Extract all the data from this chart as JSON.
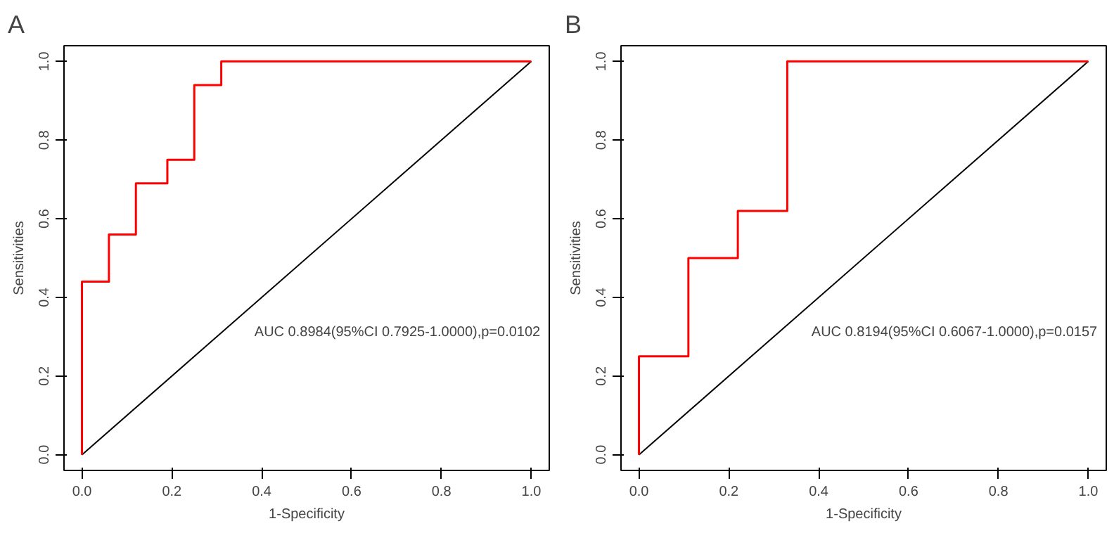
{
  "chart_data": [
    {
      "type": "line",
      "title": "A",
      "xlabel": "1-Specificity",
      "ylabel": "Sensitivities",
      "xlim": [
        -0.04,
        1.04
      ],
      "ylim": [
        -0.04,
        1.04
      ],
      "xticks": [
        {
          "value": 0,
          "label": "0.0"
        },
        {
          "value": 0.2,
          "label": "0.2"
        },
        {
          "value": 0.4,
          "label": "0.4"
        },
        {
          "value": 0.6,
          "label": "0.6"
        },
        {
          "value": 0.8,
          "label": "0.8"
        },
        {
          "value": 1,
          "label": "1.0"
        }
      ],
      "yticks": [
        {
          "value": 0,
          "label": "0.0"
        },
        {
          "value": 0.2,
          "label": "0.2"
        },
        {
          "value": 0.4,
          "label": "0.4"
        },
        {
          "value": 0.6,
          "label": "0.6"
        },
        {
          "value": 0.8,
          "label": "0.8"
        },
        {
          "value": 1,
          "label": "1.0"
        }
      ],
      "grid": false,
      "annotations": [
        "AUC 0.8984(95%CI 0.7925-1.0000),p=0.0102"
      ],
      "series": [
        {
          "color": "#000000",
          "x": [
            0,
            1
          ],
          "values": [
            0,
            1
          ]
        },
        {
          "color": "#ff0000",
          "x": [
            0,
            0,
            0.06,
            0.06,
            0.12,
            0.12,
            0.19,
            0.19,
            0.25,
            0.25,
            0.31,
            0.31,
            1
          ],
          "values": [
            0,
            0.44,
            0.44,
            0.56,
            0.56,
            0.69,
            0.69,
            0.75,
            0.75,
            0.94,
            0.94,
            1,
            1
          ]
        }
      ]
    },
    {
      "type": "line",
      "title": "B",
      "xlabel": "1-Specificity",
      "ylabel": "Sensitivities",
      "xlim": [
        -0.04,
        1.04
      ],
      "ylim": [
        -0.04,
        1.04
      ],
      "xticks": [
        {
          "value": 0,
          "label": "0.0"
        },
        {
          "value": 0.2,
          "label": "0.2"
        },
        {
          "value": 0.4,
          "label": "0.4"
        },
        {
          "value": 0.6,
          "label": "0.6"
        },
        {
          "value": 0.8,
          "label": "0.8"
        },
        {
          "value": 1,
          "label": "1.0"
        }
      ],
      "yticks": [
        {
          "value": 0,
          "label": "0.0"
        },
        {
          "value": 0.2,
          "label": "0.2"
        },
        {
          "value": 0.4,
          "label": "0.4"
        },
        {
          "value": 0.6,
          "label": "0.6"
        },
        {
          "value": 0.8,
          "label": "0.8"
        },
        {
          "value": 1,
          "label": "1.0"
        }
      ],
      "grid": false,
      "annotations": [
        "AUC 0.8194(95%CI 0.6067-1.0000),p=0.0157"
      ],
      "series": [
        {
          "color": "#000000",
          "x": [
            0,
            1
          ],
          "values": [
            0,
            1
          ]
        },
        {
          "color": "#ff0000",
          "x": [
            0,
            0,
            0.11,
            0.11,
            0.22,
            0.22,
            0.33,
            0.33,
            1
          ],
          "values": [
            0,
            0.25,
            0.25,
            0.5,
            0.5,
            0.62,
            0.62,
            1,
            1
          ]
        }
      ]
    }
  ]
}
